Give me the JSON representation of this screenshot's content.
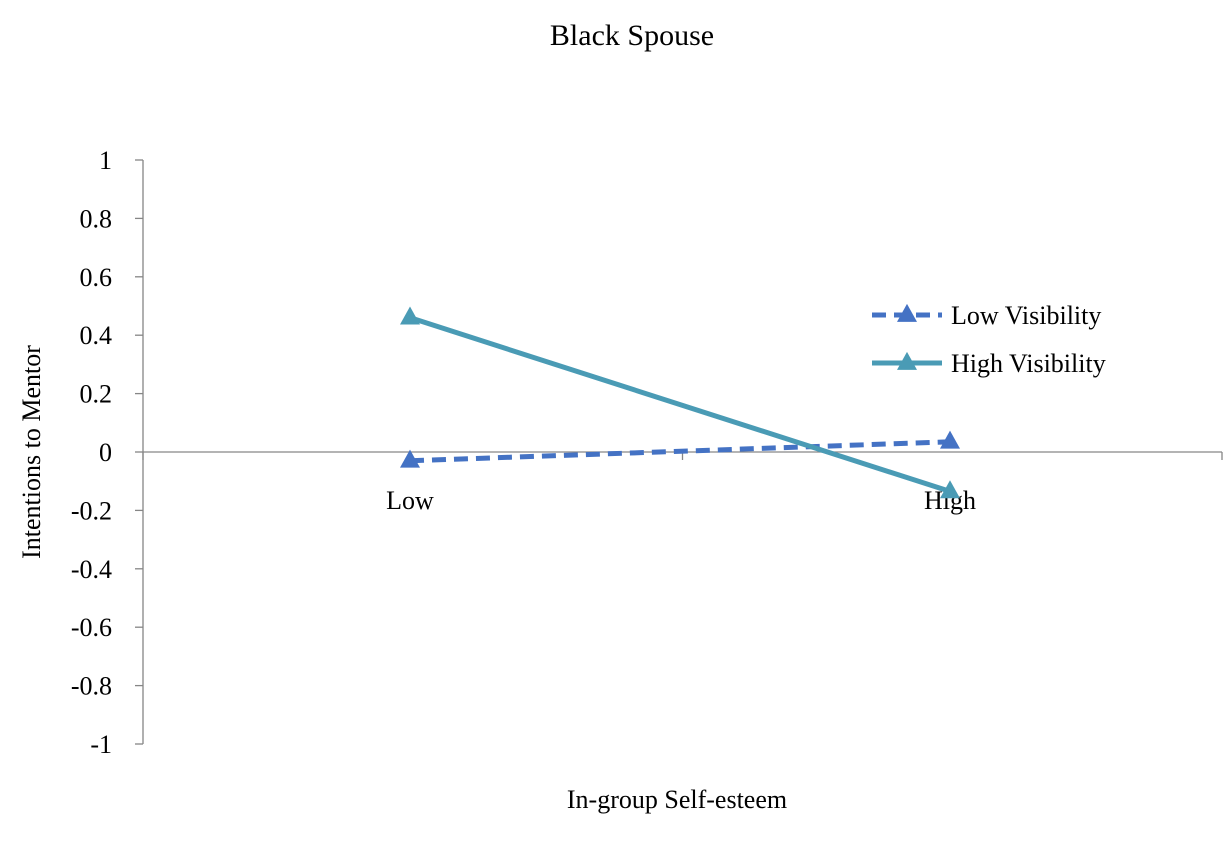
{
  "chart_data": {
    "type": "line",
    "title": "Black Spouse",
    "xlabel": "In-group Self-esteem",
    "ylabel": "Intentions to Mentor",
    "categories": [
      "Low",
      "High"
    ],
    "ylim": [
      -1,
      1
    ],
    "ytick_step": 0.2,
    "yticks": [
      "1",
      "0.8",
      "0.6",
      "0.4",
      "0.2",
      "0",
      "-0.2",
      "-0.4",
      "-0.6",
      "-0.8",
      "-1"
    ],
    "grid": false,
    "legend_position": "right",
    "series": [
      {
        "name": "Low Visibility",
        "values": [
          -0.03,
          0.035
        ],
        "color": "#4472C4",
        "line_style": "dashed",
        "marker": "triangle"
      },
      {
        "name": "High Visibility",
        "values": [
          0.46,
          -0.135
        ],
        "color": "#4A9BB5",
        "line_style": "solid",
        "marker": "triangle"
      }
    ]
  }
}
